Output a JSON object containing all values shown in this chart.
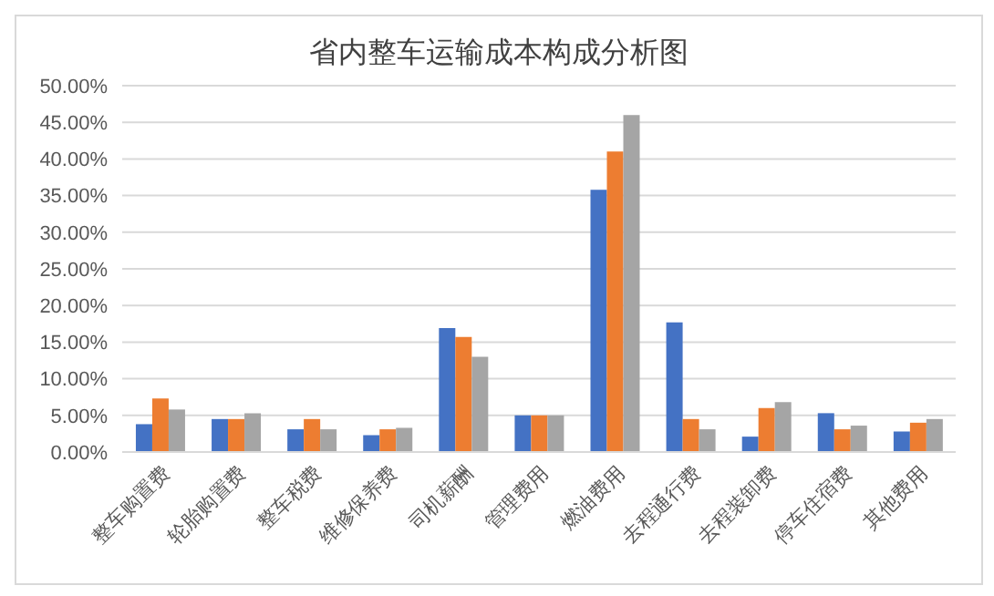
{
  "chart_data": {
    "type": "bar",
    "title": "省内整车运输成本构成分析图",
    "categories": [
      "整车购置费",
      "轮胎购置费",
      "整车税费",
      "维修保养费",
      "司机薪酬",
      "管理费用",
      "燃油费用",
      "去程通行费",
      "去程装卸费",
      "停车住宿费",
      "其他费用"
    ],
    "series": [
      {
        "color": "#4472c4",
        "values": [
          3.8,
          4.5,
          3.1,
          2.3,
          16.9,
          5.0,
          35.8,
          17.7,
          2.1,
          5.3,
          2.8
        ]
      },
      {
        "color": "#ed7d31",
        "values": [
          7.3,
          4.5,
          4.5,
          3.1,
          15.7,
          5.0,
          41.0,
          4.5,
          6.0,
          3.1,
          4.0
        ]
      },
      {
        "color": "#a5a5a5",
        "values": [
          5.8,
          5.3,
          3.1,
          3.3,
          13.0,
          5.0,
          46.0,
          3.1,
          6.8,
          3.6,
          4.5
        ]
      }
    ],
    "ylim": [
      0,
      50
    ],
    "yticks": [
      {
        "value": 0,
        "label": "0.00%"
      },
      {
        "value": 5,
        "label": "5.00%"
      },
      {
        "value": 10,
        "label": "10.00%"
      },
      {
        "value": 15,
        "label": "15.00%"
      },
      {
        "value": 20,
        "label": "20.00%"
      },
      {
        "value": 25,
        "label": "25.00%"
      },
      {
        "value": 30,
        "label": "30.00%"
      },
      {
        "value": 35,
        "label": "35.00%"
      },
      {
        "value": 40,
        "label": "40.00%"
      },
      {
        "value": 45,
        "label": "45.00%"
      },
      {
        "value": 50,
        "label": "50.00%"
      }
    ],
    "grid": "y"
  }
}
